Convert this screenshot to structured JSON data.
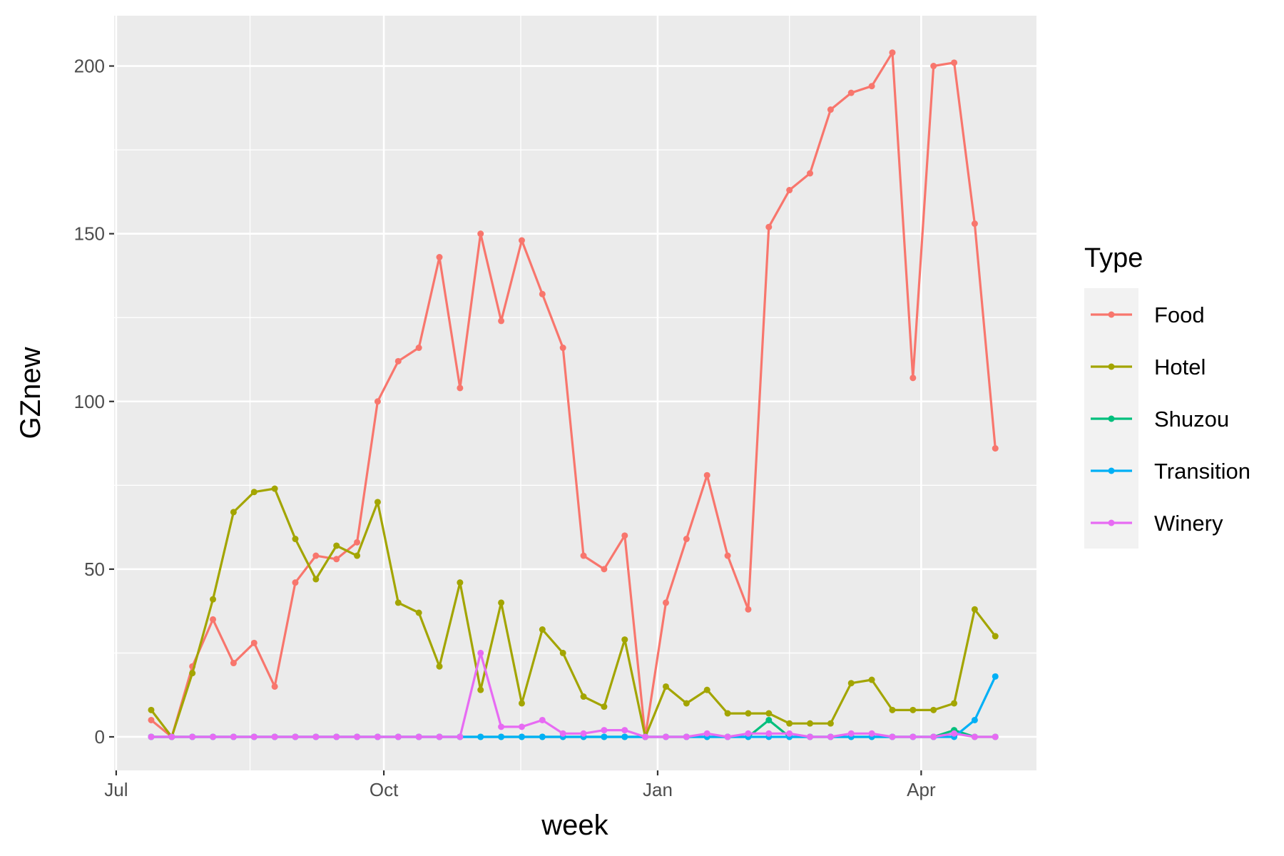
{
  "chart_data": {
    "type": "line",
    "xlabel": "week",
    "ylabel": "GZnew",
    "ylim": [
      -10,
      215
    ],
    "y_ticks": [
      0,
      50,
      100,
      150,
      200
    ],
    "x_ticks": [
      "Jul",
      "Oct",
      "Jan",
      "Apr"
    ],
    "x_ticks_week": [
      -1.7,
      11.3,
      24.6,
      37.4
    ],
    "xlim_week": [
      -1.8,
      43.0
    ],
    "grid": true,
    "legend": {
      "title": "Type",
      "position": "right"
    },
    "x": [
      0,
      1,
      2,
      3,
      4,
      5,
      6,
      7,
      8,
      9,
      10,
      11,
      12,
      13,
      14,
      15,
      16,
      17,
      18,
      19,
      20,
      21,
      22,
      23,
      24,
      25,
      26,
      27,
      28,
      29,
      30,
      31,
      32,
      33,
      34,
      35,
      36,
      37,
      38,
      39,
      40,
      41
    ],
    "series": [
      {
        "name": "Food",
        "color": "#F8766D",
        "values": [
          5,
          0,
          21,
          35,
          22,
          28,
          15,
          46,
          54,
          53,
          58,
          100,
          112,
          116,
          143,
          104,
          150,
          124,
          148,
          132,
          116,
          54,
          50,
          60,
          0,
          40,
          59,
          78,
          54,
          38,
          152,
          163,
          168,
          187,
          192,
          194,
          204,
          107,
          200,
          201,
          153,
          86
        ]
      },
      {
        "name": "Hotel",
        "color": "#A3A500",
        "values": [
          8,
          0,
          19,
          41,
          67,
          73,
          74,
          59,
          47,
          57,
          54,
          70,
          40,
          37,
          21,
          46,
          14,
          40,
          10,
          32,
          25,
          12,
          9,
          29,
          0,
          15,
          10,
          14,
          7,
          7,
          7,
          4,
          4,
          4,
          16,
          17,
          8,
          8,
          8,
          10,
          38,
          30
        ]
      },
      {
        "name": "Shuzou",
        "color": "#00BF7D",
        "values": [
          0,
          0,
          0,
          0,
          0,
          0,
          0,
          0,
          0,
          0,
          0,
          0,
          0,
          0,
          0,
          0,
          0,
          0,
          0,
          0,
          0,
          0,
          0,
          0,
          0,
          0,
          0,
          0,
          0,
          0,
          5,
          0,
          0,
          0,
          0,
          0,
          0,
          0,
          0,
          2,
          0,
          0
        ]
      },
      {
        "name": "Transition",
        "color": "#00B0F6",
        "values": [
          0,
          0,
          0,
          0,
          0,
          0,
          0,
          0,
          0,
          0,
          0,
          0,
          0,
          0,
          0,
          0,
          0,
          0,
          0,
          0,
          0,
          0,
          0,
          0,
          0,
          0,
          0,
          0,
          0,
          0,
          0,
          0,
          0,
          0,
          0,
          0,
          0,
          0,
          0,
          0,
          5,
          18
        ]
      },
      {
        "name": "Winery",
        "color": "#E76BF3",
        "values": [
          0,
          0,
          0,
          0,
          0,
          0,
          0,
          0,
          0,
          0,
          0,
          0,
          0,
          0,
          0,
          0,
          25,
          3,
          3,
          5,
          1,
          1,
          2,
          2,
          0,
          0,
          0,
          1,
          0,
          1,
          1,
          1,
          0,
          0,
          1,
          1,
          0,
          0,
          0,
          1,
          0,
          0
        ]
      }
    ]
  }
}
